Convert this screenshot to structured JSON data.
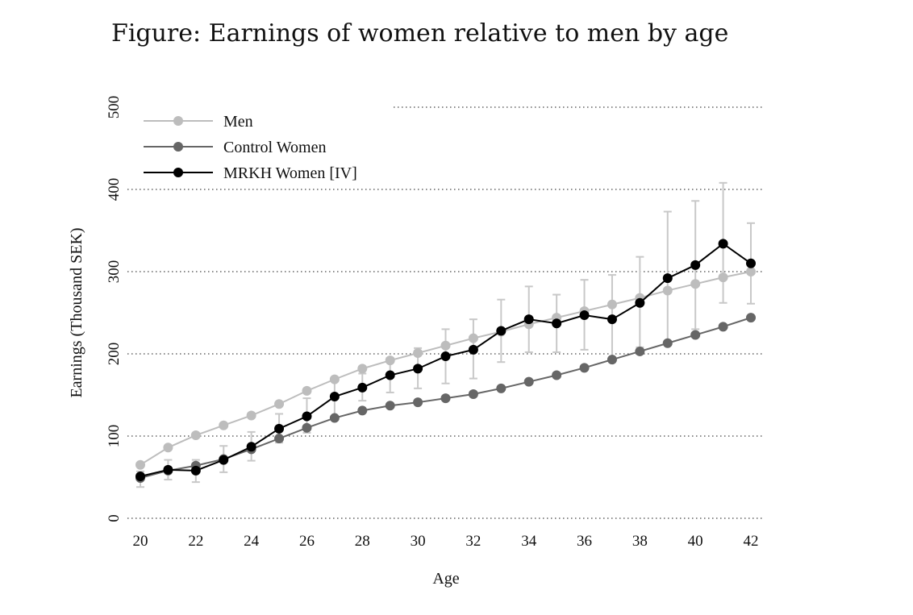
{
  "chart_data": {
    "type": "line",
    "title": "Figure: Earnings of women relative to men by age",
    "xlabel": "Age",
    "ylabel": "Earnings (Thousand SEK)",
    "xlim": [
      20,
      42
    ],
    "ylim": [
      0,
      500
    ],
    "xticks": [
      20,
      22,
      24,
      26,
      28,
      30,
      32,
      34,
      36,
      38,
      40,
      42
    ],
    "yticks": [
      0,
      100,
      200,
      300,
      400,
      500
    ],
    "grid": "horizontal-dotted",
    "legend_position": "top-left",
    "x": [
      20,
      21,
      22,
      23,
      24,
      25,
      26,
      27,
      28,
      29,
      30,
      31,
      32,
      33,
      34,
      35,
      36,
      37,
      38,
      39,
      40,
      41,
      42
    ],
    "series": [
      {
        "name": "Men",
        "color": "#bdbdbd",
        "values": [
          65,
          86,
          101,
          113,
          125,
          139,
          155,
          169,
          182,
          192,
          201,
          210,
          219,
          227,
          236,
          244,
          252,
          260,
          268,
          277,
          285,
          293,
          300
        ]
      },
      {
        "name": "Control Women",
        "color": "#666666",
        "values": [
          49,
          58,
          64,
          72,
          84,
          97,
          110,
          122,
          131,
          137,
          141,
          146,
          151,
          158,
          166,
          174,
          183,
          193,
          203,
          213,
          223,
          233,
          244
        ]
      },
      {
        "name": "MRKH Women [IV]",
        "color": "#000000",
        "values": [
          51,
          59,
          58,
          71,
          87,
          109,
          124,
          148,
          159,
          174,
          182,
          197,
          205,
          228,
          242,
          237,
          247,
          242,
          262,
          292,
          308,
          334,
          310
        ],
        "ci_low": [
          38,
          47,
          44,
          56,
          70,
          92,
          104,
          124,
          143,
          153,
          158,
          164,
          170,
          190,
          202,
          202,
          205,
          190,
          208,
          212,
          230,
          262,
          261
        ],
        "ci_high": [
          57,
          71,
          71,
          88,
          105,
          127,
          146,
          167,
          176,
          195,
          207,
          230,
          242,
          266,
          282,
          272,
          290,
          296,
          318,
          373,
          386,
          408,
          359
        ]
      }
    ]
  }
}
